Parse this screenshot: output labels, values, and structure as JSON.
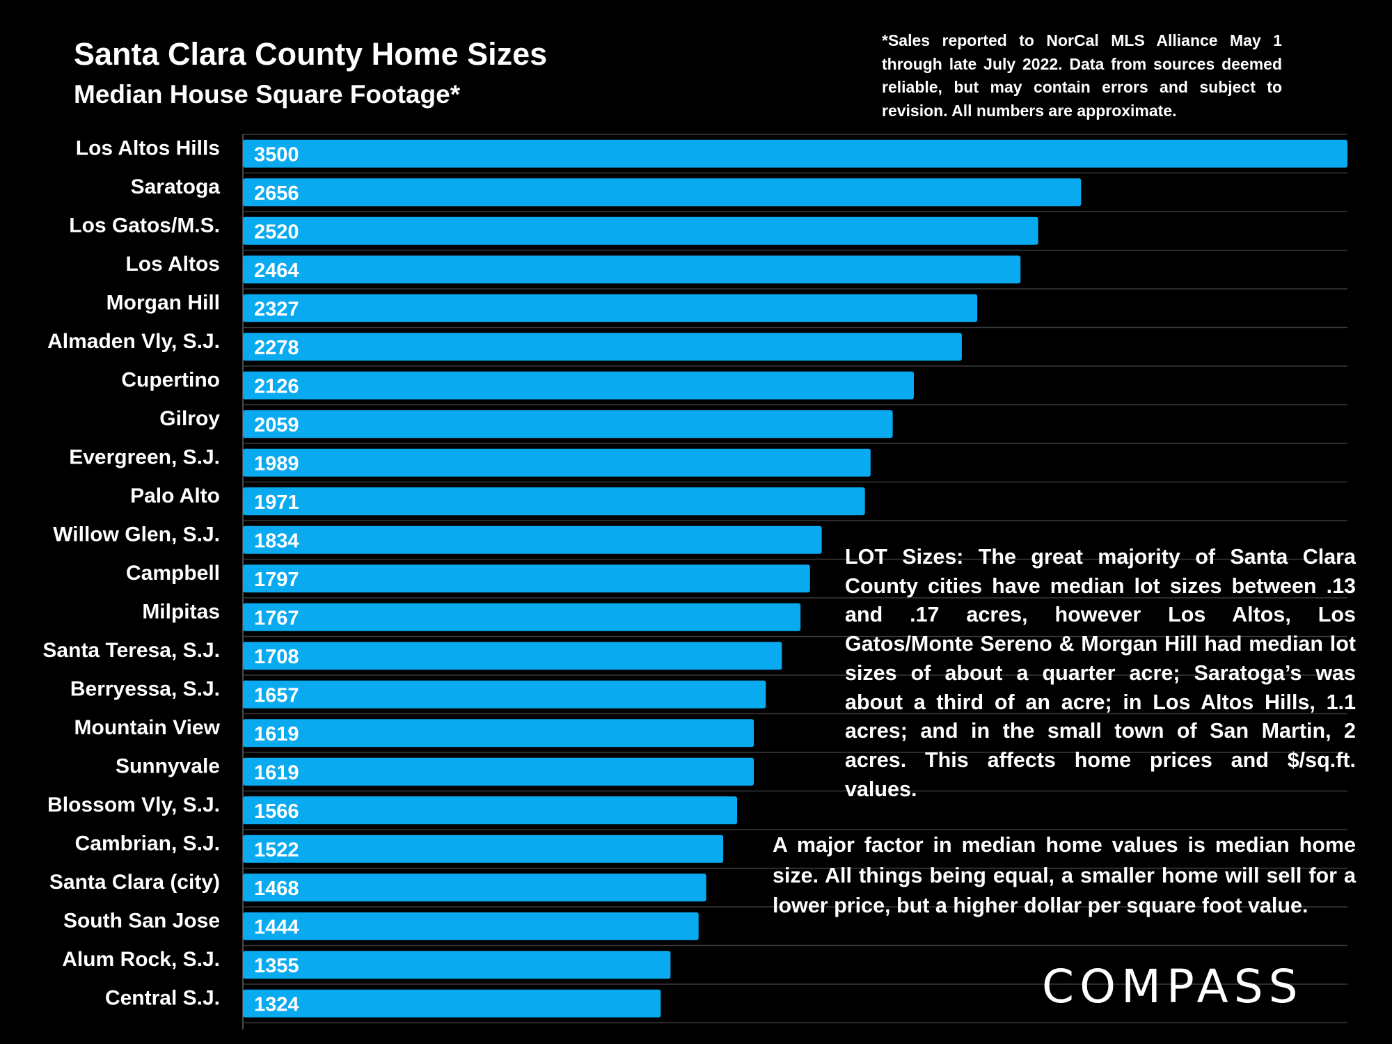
{
  "chart_data": {
    "type": "bar",
    "orientation": "horizontal",
    "title": "Santa Clara County Home Sizes",
    "subtitle": "Median House Square Footage*",
    "categories": [
      "Los Altos Hills",
      "Saratoga",
      "Los Gatos/M.S.",
      "Los Altos",
      "Morgan Hill",
      "Almaden Vly, S.J.",
      "Cupertino",
      "Gilroy",
      "Evergreen, S.J.",
      "Palo Alto",
      "Willow Glen, S.J.",
      "Campbell",
      "Milpitas",
      "Santa Teresa, S.J.",
      "Berryessa, S.J.",
      "Mountain View",
      "Sunnyvale",
      "Blossom Vly, S.J.",
      "Cambrian, S.J.",
      "Santa Clara (city)",
      "South San Jose",
      "Alum Rock, S.J.",
      "Central S.J."
    ],
    "values": [
      3500,
      2656,
      2520,
      2464,
      2327,
      2278,
      2126,
      2059,
      1989,
      1971,
      1834,
      1797,
      1767,
      1708,
      1657,
      1619,
      1619,
      1566,
      1522,
      1468,
      1444,
      1355,
      1324
    ],
    "xlim": [
      0,
      3500
    ],
    "bar_color": "#0aaaf0",
    "grid": true,
    "legend": "none"
  },
  "footnote": "*Sales reported to NorCal MLS Alliance May 1 through late July 2022. Data from sources deemed reliable, but may contain errors and subject to revision. All numbers are approximate.",
  "notes": {
    "lot_sizes": "LOT Sizes: The great majority of Santa Clara County cities have median lot sizes between .13 and .17 acres, however Los Altos, Los Gatos/Monte Sereno & Morgan Hill had median lot sizes of about a quarter acre; Saratoga’s was about a third of an acre; in Los Altos Hills, 1.1 acres; and in the small town of San Martin, 2 acres. This affects home prices and $/sq.ft. values.",
    "home_size_factor": "A major factor in median home values is median home size. All things being equal, a smaller home will sell for a lower price, but a higher dollar per square foot value."
  },
  "logo": "COMPASS"
}
